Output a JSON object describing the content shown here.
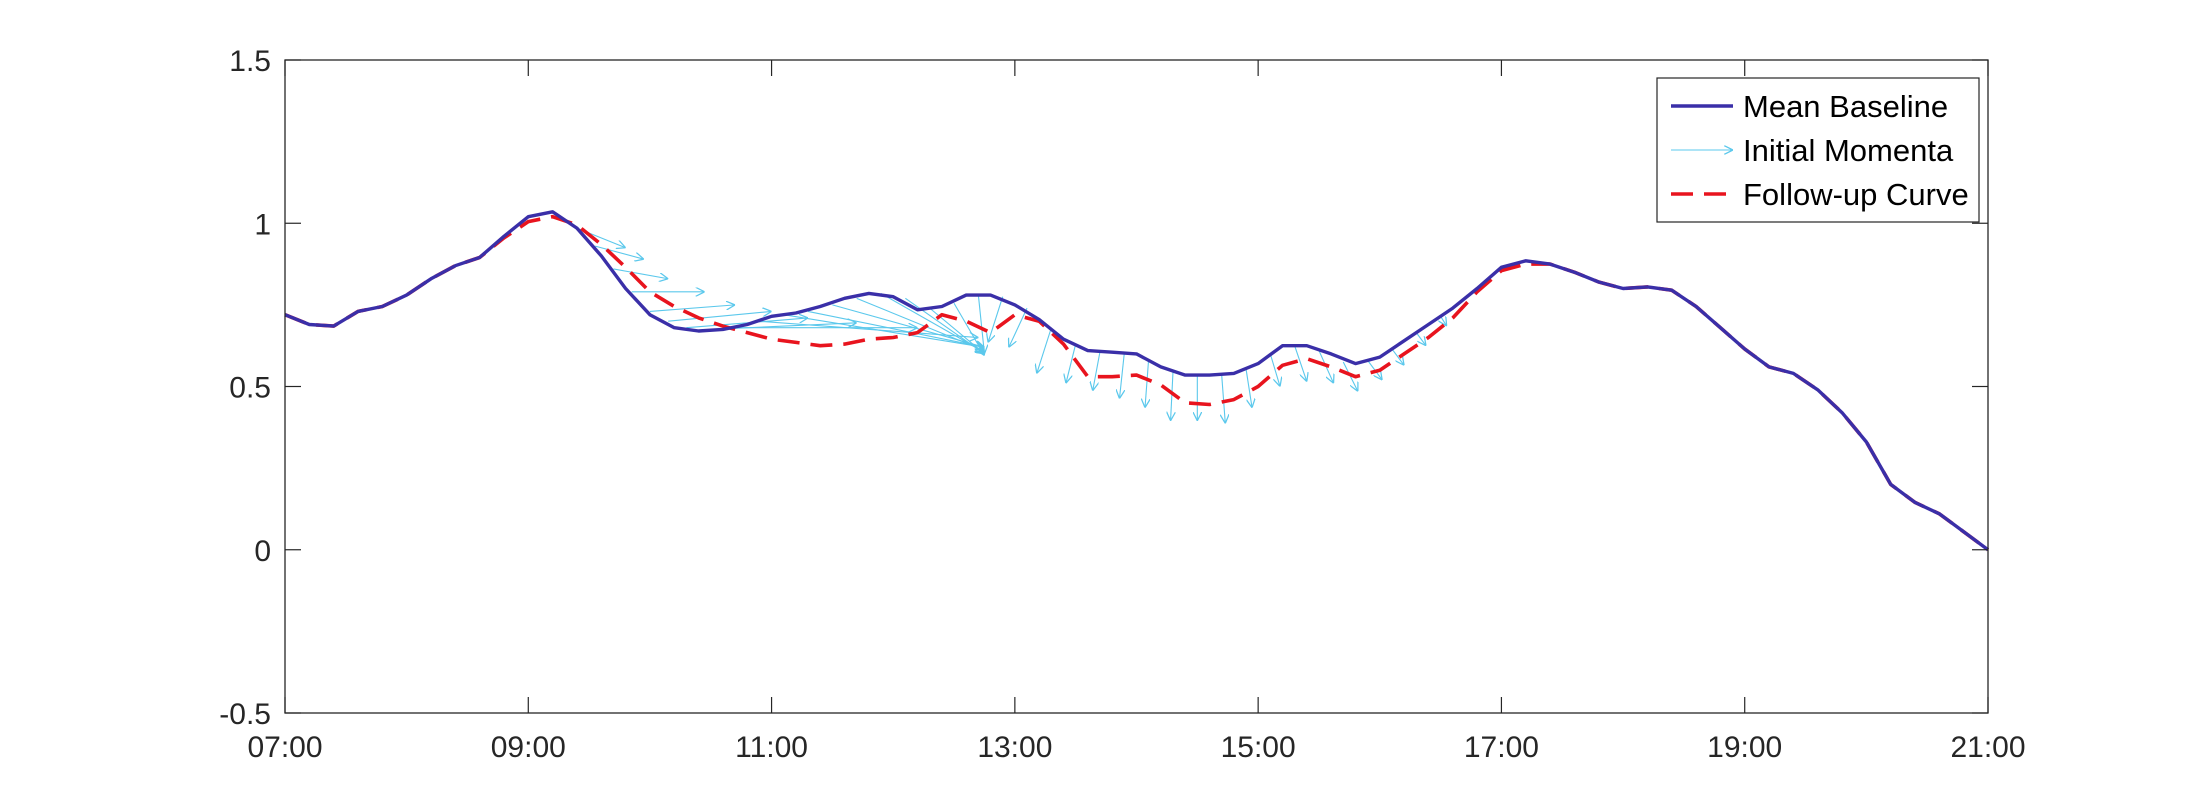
{
  "chart_data": {
    "type": "line",
    "title": "",
    "xlabel": "",
    "ylabel": "",
    "xlim": [
      7,
      21
    ],
    "ylim": [
      -0.5,
      1.5
    ],
    "x_ticks": [
      7,
      9,
      11,
      13,
      15,
      17,
      19,
      21
    ],
    "x_tick_labels": [
      "07:00",
      "09:00",
      "11:00",
      "13:00",
      "15:00",
      "17:00",
      "19:00",
      "21:00"
    ],
    "y_ticks": [
      -0.5,
      0,
      0.5,
      1,
      1.5
    ],
    "y_tick_labels": [
      "-0.5",
      "0",
      "0.5",
      "1",
      "1.5"
    ],
    "grid": false,
    "legend_position": "top-right",
    "colors": {
      "baseline": "#3a2fa8",
      "momenta": "#5bc8ec",
      "followup": "#e8141e"
    },
    "legend": [
      {
        "key": "baseline",
        "label": "Mean Baseline"
      },
      {
        "key": "momenta",
        "label": "Initial Momenta"
      },
      {
        "key": "followup",
        "label": "Follow-up Curve"
      }
    ],
    "series": [
      {
        "name": "Mean Baseline",
        "style": "solid",
        "x": [
          7.0,
          7.2,
          7.4,
          7.6,
          7.8,
          8.0,
          8.2,
          8.4,
          8.6,
          8.8,
          9.0,
          9.2,
          9.4,
          9.6,
          9.8,
          10.0,
          10.2,
          10.4,
          10.6,
          10.8,
          11.0,
          11.2,
          11.4,
          11.6,
          11.8,
          12.0,
          12.2,
          12.4,
          12.6,
          12.8,
          13.0,
          13.2,
          13.4,
          13.6,
          13.8,
          14.0,
          14.2,
          14.4,
          14.6,
          14.8,
          15.0,
          15.2,
          15.4,
          15.6,
          15.8,
          16.0,
          16.2,
          16.4,
          16.6,
          16.8,
          17.0,
          17.2,
          17.4,
          17.6,
          17.8,
          18.0,
          18.2,
          18.4,
          18.6,
          18.8,
          19.0,
          19.2,
          19.4,
          19.6,
          19.8,
          20.0,
          20.2,
          20.4,
          20.6,
          20.8,
          21.0
        ],
        "y": [
          0.72,
          0.69,
          0.685,
          0.73,
          0.745,
          0.78,
          0.83,
          0.87,
          0.895,
          0.96,
          1.02,
          1.035,
          0.985,
          0.9,
          0.8,
          0.72,
          0.68,
          0.67,
          0.675,
          0.69,
          0.715,
          0.725,
          0.745,
          0.77,
          0.785,
          0.775,
          0.735,
          0.745,
          0.78,
          0.78,
          0.75,
          0.705,
          0.645,
          0.61,
          0.605,
          0.6,
          0.56,
          0.535,
          0.535,
          0.54,
          0.57,
          0.625,
          0.625,
          0.6,
          0.57,
          0.59,
          0.64,
          0.69,
          0.74,
          0.8,
          0.865,
          0.885,
          0.875,
          0.85,
          0.82,
          0.8,
          0.805,
          0.795,
          0.745,
          0.68,
          0.615,
          0.56,
          0.54,
          0.49,
          0.42,
          0.33,
          0.2,
          0.145,
          0.11,
          0.055,
          0.0
        ]
      },
      {
        "name": "Follow-up Curve",
        "style": "dashed",
        "x": [
          7.0,
          7.2,
          7.4,
          7.6,
          7.8,
          8.0,
          8.2,
          8.4,
          8.6,
          8.8,
          9.0,
          9.2,
          9.4,
          9.6,
          9.8,
          10.0,
          10.2,
          10.4,
          10.6,
          10.8,
          11.0,
          11.2,
          11.4,
          11.6,
          11.8,
          12.0,
          12.2,
          12.4,
          12.6,
          12.8,
          13.0,
          13.2,
          13.4,
          13.6,
          13.8,
          14.0,
          14.2,
          14.4,
          14.6,
          14.8,
          15.0,
          15.2,
          15.4,
          15.6,
          15.8,
          16.0,
          16.2,
          16.4,
          16.6,
          16.8,
          17.0,
          17.2,
          17.4,
          17.6,
          17.8,
          18.0,
          18.2,
          18.4,
          18.6,
          18.8,
          19.0,
          19.2,
          19.4,
          19.6,
          19.8,
          20.0,
          20.2,
          20.4,
          20.6,
          20.8,
          21.0
        ],
        "y": [
          0.72,
          0.69,
          0.685,
          0.73,
          0.745,
          0.78,
          0.83,
          0.87,
          0.895,
          0.955,
          1.005,
          1.02,
          0.995,
          0.935,
          0.865,
          0.79,
          0.745,
          0.71,
          0.685,
          0.665,
          0.645,
          0.635,
          0.625,
          0.63,
          0.645,
          0.65,
          0.665,
          0.72,
          0.7,
          0.665,
          0.72,
          0.7,
          0.63,
          0.53,
          0.53,
          0.535,
          0.505,
          0.45,
          0.445,
          0.46,
          0.5,
          0.565,
          0.585,
          0.56,
          0.53,
          0.55,
          0.6,
          0.65,
          0.71,
          0.79,
          0.855,
          0.875,
          0.875,
          0.85,
          0.82,
          0.8,
          0.805,
          0.795,
          0.745,
          0.68,
          0.615,
          0.56,
          0.54,
          0.49,
          0.42,
          0.33,
          0.2,
          0.145,
          0.11,
          0.055,
          0.0
        ]
      }
    ],
    "momenta": {
      "name": "Initial Momenta",
      "arrows": [
        {
          "x": 9.4,
          "y": 0.985,
          "dx": 0.4,
          "dy": -0.06
        },
        {
          "x": 9.55,
          "y": 0.93,
          "dx": 0.4,
          "dy": -0.04
        },
        {
          "x": 9.7,
          "y": 0.86,
          "dx": 0.45,
          "dy": -0.03
        },
        {
          "x": 9.85,
          "y": 0.79,
          "dx": 0.6,
          "dy": 0.0
        },
        {
          "x": 10.0,
          "y": 0.73,
          "dx": 0.7,
          "dy": 0.02
        },
        {
          "x": 10.15,
          "y": 0.7,
          "dx": 0.85,
          "dy": 0.03
        },
        {
          "x": 10.3,
          "y": 0.68,
          "dx": 1.0,
          "dy": 0.03
        },
        {
          "x": 10.5,
          "y": 0.675,
          "dx": 1.2,
          "dy": 0.02
        },
        {
          "x": 10.7,
          "y": 0.68,
          "dx": 1.5,
          "dy": 0.0
        },
        {
          "x": 10.9,
          "y": 0.7,
          "dx": 1.8,
          "dy": -0.05
        },
        {
          "x": 11.1,
          "y": 0.72,
          "dx": 1.65,
          "dy": -0.1
        },
        {
          "x": 11.3,
          "y": 0.73,
          "dx": 1.45,
          "dy": -0.11
        },
        {
          "x": 11.5,
          "y": 0.75,
          "dx": 1.25,
          "dy": -0.13
        },
        {
          "x": 11.7,
          "y": 0.77,
          "dx": 1.05,
          "dy": -0.16
        },
        {
          "x": 11.9,
          "y": 0.785,
          "dx": 0.85,
          "dy": -0.18
        },
        {
          "x": 12.1,
          "y": 0.77,
          "dx": 0.65,
          "dy": -0.17
        },
        {
          "x": 12.3,
          "y": 0.74,
          "dx": 0.45,
          "dy": -0.14
        },
        {
          "x": 12.5,
          "y": 0.755,
          "dx": 0.25,
          "dy": -0.16
        },
        {
          "x": 12.7,
          "y": 0.78,
          "dx": 0.05,
          "dy": -0.18
        },
        {
          "x": 12.9,
          "y": 0.775,
          "dx": -0.12,
          "dy": -0.14
        },
        {
          "x": 13.1,
          "y": 0.74,
          "dx": -0.15,
          "dy": -0.12
        },
        {
          "x": 13.3,
          "y": 0.68,
          "dx": -0.12,
          "dy": -0.14
        },
        {
          "x": 13.5,
          "y": 0.63,
          "dx": -0.08,
          "dy": -0.12
        },
        {
          "x": 13.7,
          "y": 0.607,
          "dx": -0.06,
          "dy": -0.12
        },
        {
          "x": 13.9,
          "y": 0.603,
          "dx": -0.04,
          "dy": -0.14
        },
        {
          "x": 14.1,
          "y": 0.585,
          "dx": -0.03,
          "dy": -0.15
        },
        {
          "x": 14.3,
          "y": 0.545,
          "dx": -0.02,
          "dy": -0.15
        },
        {
          "x": 14.5,
          "y": 0.535,
          "dx": 0.0,
          "dy": -0.14
        },
        {
          "x": 14.7,
          "y": 0.537,
          "dx": 0.03,
          "dy": -0.15
        },
        {
          "x": 14.9,
          "y": 0.555,
          "dx": 0.05,
          "dy": -0.12
        },
        {
          "x": 15.1,
          "y": 0.6,
          "dx": 0.08,
          "dy": -0.1
        },
        {
          "x": 15.3,
          "y": 0.625,
          "dx": 0.1,
          "dy": -0.11
        },
        {
          "x": 15.5,
          "y": 0.61,
          "dx": 0.12,
          "dy": -0.1
        },
        {
          "x": 15.7,
          "y": 0.575,
          "dx": 0.12,
          "dy": -0.09
        },
        {
          "x": 15.9,
          "y": 0.58,
          "dx": 0.12,
          "dy": -0.06
        },
        {
          "x": 16.1,
          "y": 0.615,
          "dx": 0.1,
          "dy": -0.05
        },
        {
          "x": 16.3,
          "y": 0.665,
          "dx": 0.08,
          "dy": -0.04
        },
        {
          "x": 16.5,
          "y": 0.715,
          "dx": 0.05,
          "dy": -0.03
        }
      ]
    }
  }
}
